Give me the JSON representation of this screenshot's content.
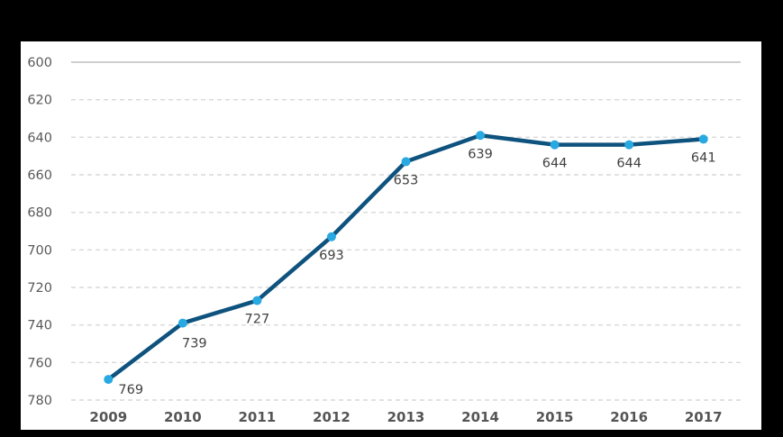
{
  "page": {
    "background_color": "#000000",
    "panel_background_color": "#ffffff"
  },
  "chart_data": {
    "type": "line",
    "title": "",
    "xlabel": "",
    "ylabel": "",
    "categories": [
      "2009",
      "2010",
      "2011",
      "2012",
      "2013",
      "2014",
      "2015",
      "2016",
      "2017"
    ],
    "values": [
      769,
      739,
      727,
      693,
      653,
      639,
      644,
      644,
      641
    ],
    "data_labels": [
      "769",
      "739",
      "727",
      "693",
      "653",
      "639",
      "644",
      "644",
      "641"
    ],
    "data_label_position": "below-point",
    "y_axis": {
      "min": 600,
      "max": 780,
      "step": 20,
      "direction": "increasing-downward",
      "ticks": [
        600,
        620,
        640,
        660,
        680,
        700,
        720,
        740,
        760,
        780
      ]
    },
    "grid": {
      "horizontal": true,
      "vertical": false,
      "style": "dashed",
      "top_line_style": "solid"
    },
    "legend": "none",
    "colors": {
      "line": "#0e527e",
      "marker": "#29a9e1",
      "grid_dashed": "#d9d9d9",
      "grid_solid": "#bfbfbf",
      "y_tick_text": "#595959",
      "x_tick_text": "#555555",
      "data_label_text": "#404040"
    }
  }
}
